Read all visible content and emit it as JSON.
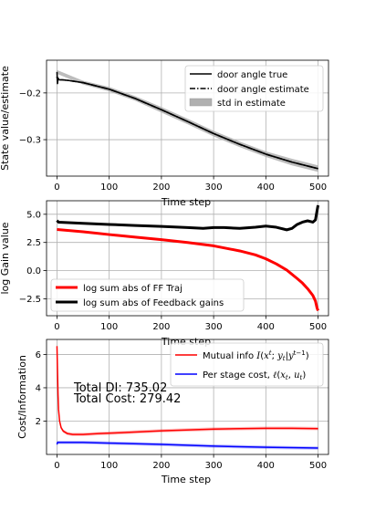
{
  "chart_data": [
    {
      "type": "line",
      "xlabel": "Time step",
      "ylabel": "State value/estimate",
      "xlim": [
        -20,
        520
      ],
      "ylim": [
        -0.378,
        -0.13
      ],
      "xticks": [
        0,
        100,
        200,
        300,
        400,
        500
      ],
      "yticks": [
        -0.3,
        -0.2
      ],
      "ytick_labels": [
        "−0.3",
        "−0.2"
      ],
      "grid": true,
      "legend": "top-right",
      "series": [
        {
          "name": "door angle true",
          "color": "#000000",
          "style": "solid",
          "x": [
            0,
            1,
            2,
            4,
            10,
            20,
            50,
            100,
            150,
            200,
            250,
            300,
            350,
            400,
            450,
            500
          ],
          "y": [
            -0.155,
            -0.18,
            -0.168,
            -0.172,
            -0.172,
            -0.173,
            -0.178,
            -0.192,
            -0.212,
            -0.236,
            -0.261,
            -0.287,
            -0.31,
            -0.331,
            -0.348,
            -0.362
          ]
        },
        {
          "name": "door angle estimate",
          "color": "#000000",
          "style": "dashdot",
          "x": [
            0,
            1,
            2,
            4,
            10,
            20,
            50,
            100,
            150,
            200,
            250,
            300,
            350,
            400,
            450,
            500
          ],
          "y": [
            -0.165,
            -0.175,
            -0.169,
            -0.172,
            -0.172,
            -0.173,
            -0.178,
            -0.192,
            -0.212,
            -0.236,
            -0.261,
            -0.287,
            -0.31,
            -0.331,
            -0.348,
            -0.362
          ]
        }
      ],
      "band": {
        "name": "std in estimate",
        "color": "#b0b0b0",
        "x": [
          0,
          50,
          100,
          150,
          200,
          250,
          300,
          350,
          400,
          450,
          500
        ],
        "halfwidth": [
          0.004,
          0.004,
          0.005,
          0.005,
          0.006,
          0.006,
          0.006,
          0.006,
          0.006,
          0.007,
          0.007
        ]
      }
    },
    {
      "type": "line",
      "xlabel": "Time step",
      "ylabel": "log Gain value",
      "xlim": [
        -20,
        520
      ],
      "ylim": [
        -4.0,
        6.2
      ],
      "xticks": [
        0,
        100,
        200,
        300,
        400,
        500
      ],
      "yticks": [
        -2.5,
        0.0,
        2.5,
        5.0
      ],
      "ytick_labels": [
        "−2.5",
        "0.0",
        "2.5",
        "5.0"
      ],
      "grid": true,
      "legend": "bottom-left",
      "series": [
        {
          "name": "log sum abs of FF Traj",
          "color": "#ff0000",
          "x": [
            0,
            50,
            100,
            150,
            200,
            250,
            300,
            350,
            380,
            400,
            420,
            440,
            460,
            470,
            480,
            490,
            495,
            498,
            500
          ],
          "y": [
            3.65,
            3.45,
            3.2,
            2.97,
            2.75,
            2.5,
            2.2,
            1.75,
            1.4,
            1.05,
            0.6,
            0.05,
            -0.7,
            -1.1,
            -1.6,
            -2.2,
            -2.7,
            -3.3,
            -3.55
          ]
        },
        {
          "name": "log sum abs of Feedback gains",
          "color": "#000000",
          "x": [
            0,
            3,
            50,
            100,
            150,
            200,
            250,
            280,
            300,
            320,
            350,
            380,
            400,
            420,
            440,
            450,
            460,
            470,
            480,
            490,
            495,
            498,
            500
          ],
          "y": [
            4.45,
            4.3,
            4.2,
            4.1,
            4.0,
            3.92,
            3.82,
            3.75,
            3.82,
            3.82,
            3.75,
            3.85,
            3.95,
            3.85,
            3.62,
            3.75,
            4.1,
            4.3,
            4.42,
            4.3,
            4.5,
            5.3,
            5.8
          ]
        }
      ]
    },
    {
      "type": "line",
      "xlabel": "Time step",
      "ylabel": "Cost/Information",
      "xlim": [
        -20,
        520
      ],
      "ylim": [
        0,
        6.9
      ],
      "xticks": [
        0,
        100,
        200,
        300,
        400,
        500
      ],
      "yticks": [
        2,
        4,
        6
      ],
      "grid": true,
      "legend": "top-right",
      "annotations": [
        "Total DI: 735.02",
        "Total Cost: 279.42"
      ],
      "series": [
        {
          "name": "Mutual info ",
          "color": "#ff0000",
          "x": [
            0,
            1,
            2,
            3,
            5,
            8,
            12,
            20,
            30,
            50,
            80,
            120,
            200,
            300,
            400,
            450,
            500
          ],
          "y": [
            6.5,
            5.0,
            3.6,
            2.7,
            2.0,
            1.6,
            1.4,
            1.25,
            1.2,
            1.2,
            1.25,
            1.3,
            1.42,
            1.52,
            1.57,
            1.57,
            1.55
          ],
          "band_halfwidth": 0.1
        },
        {
          "name": "Per stage cost, ",
          "color": "#0000ff",
          "x": [
            0,
            1,
            2,
            50,
            100,
            200,
            300,
            400,
            500
          ],
          "y": [
            0.6,
            0.72,
            0.72,
            0.72,
            0.68,
            0.6,
            0.5,
            0.43,
            0.38
          ],
          "band_halfwidth": 0.1
        }
      ]
    }
  ]
}
